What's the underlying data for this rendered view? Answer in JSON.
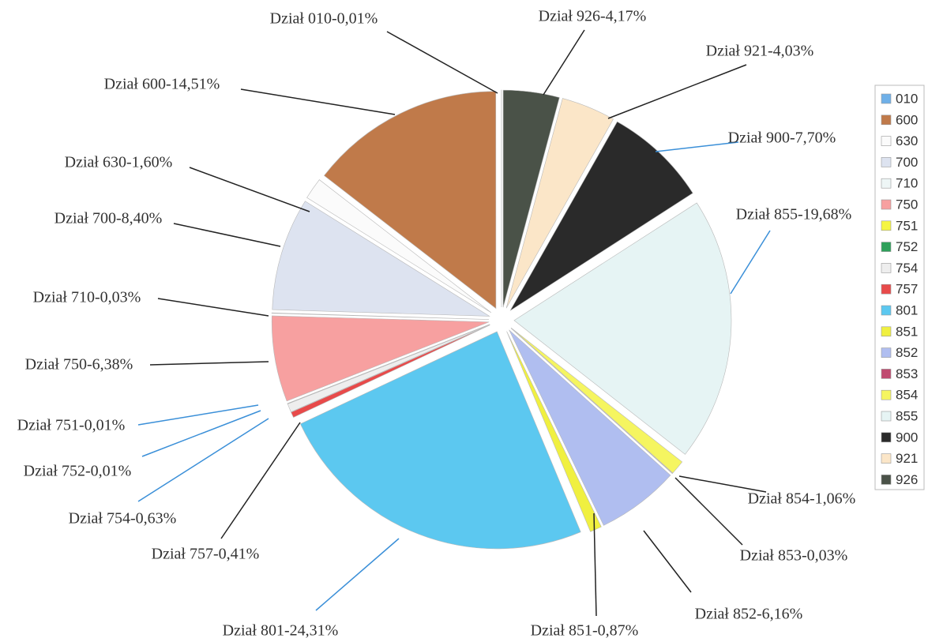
{
  "chart_data": {
    "type": "pie",
    "categories": [
      "010",
      "600",
      "630",
      "700",
      "710",
      "750",
      "751",
      "752",
      "754",
      "757",
      "801",
      "851",
      "852",
      "853",
      "854",
      "855",
      "900",
      "921",
      "926"
    ],
    "values": [
      0.01,
      14.51,
      1.6,
      8.4,
      0.03,
      6.38,
      0.01,
      0.01,
      0.63,
      0.41,
      24.31,
      0.87,
      6.16,
      0.03,
      1.06,
      19.68,
      7.7,
      4.03,
      4.17
    ],
    "value_labels": [
      "Dział 010-0,01%",
      "Dział 600-14,51%",
      "Dział 630-1,60%",
      "Dział 700-8,40%",
      "Dział 710-0,03%",
      "Dział 750-6,38%",
      "Dział 751-0,01%",
      "Dział 752-0,01%",
      "Dział 754-0,63%",
      "Dział 757-0,41%",
      "Dział 801-24,31%",
      "Dział 851-0,87%",
      "Dział 852-6,16%",
      "Dział 853-0,03%",
      "Dział 854-1,06%",
      "Dział 855-19,68%",
      "Dział 900-7,70%",
      "Dział 921-4,03%",
      "Dział 926-4,17%"
    ],
    "colors": [
      "#6fb0e8",
      "#c07a4a",
      "#fbfbfb",
      "#dde3f0",
      "#eef6f6",
      "#f7a0a0",
      "#f5f542",
      "#2ea05a",
      "#eeeeee",
      "#e84a4a",
      "#5cc8f0",
      "#f0f040",
      "#b0bef0",
      "#c04a70",
      "#f5f560",
      "#e6f4f4",
      "#2a2a2a",
      "#fbe6c8",
      "#4a5248"
    ],
    "legend": "right"
  }
}
